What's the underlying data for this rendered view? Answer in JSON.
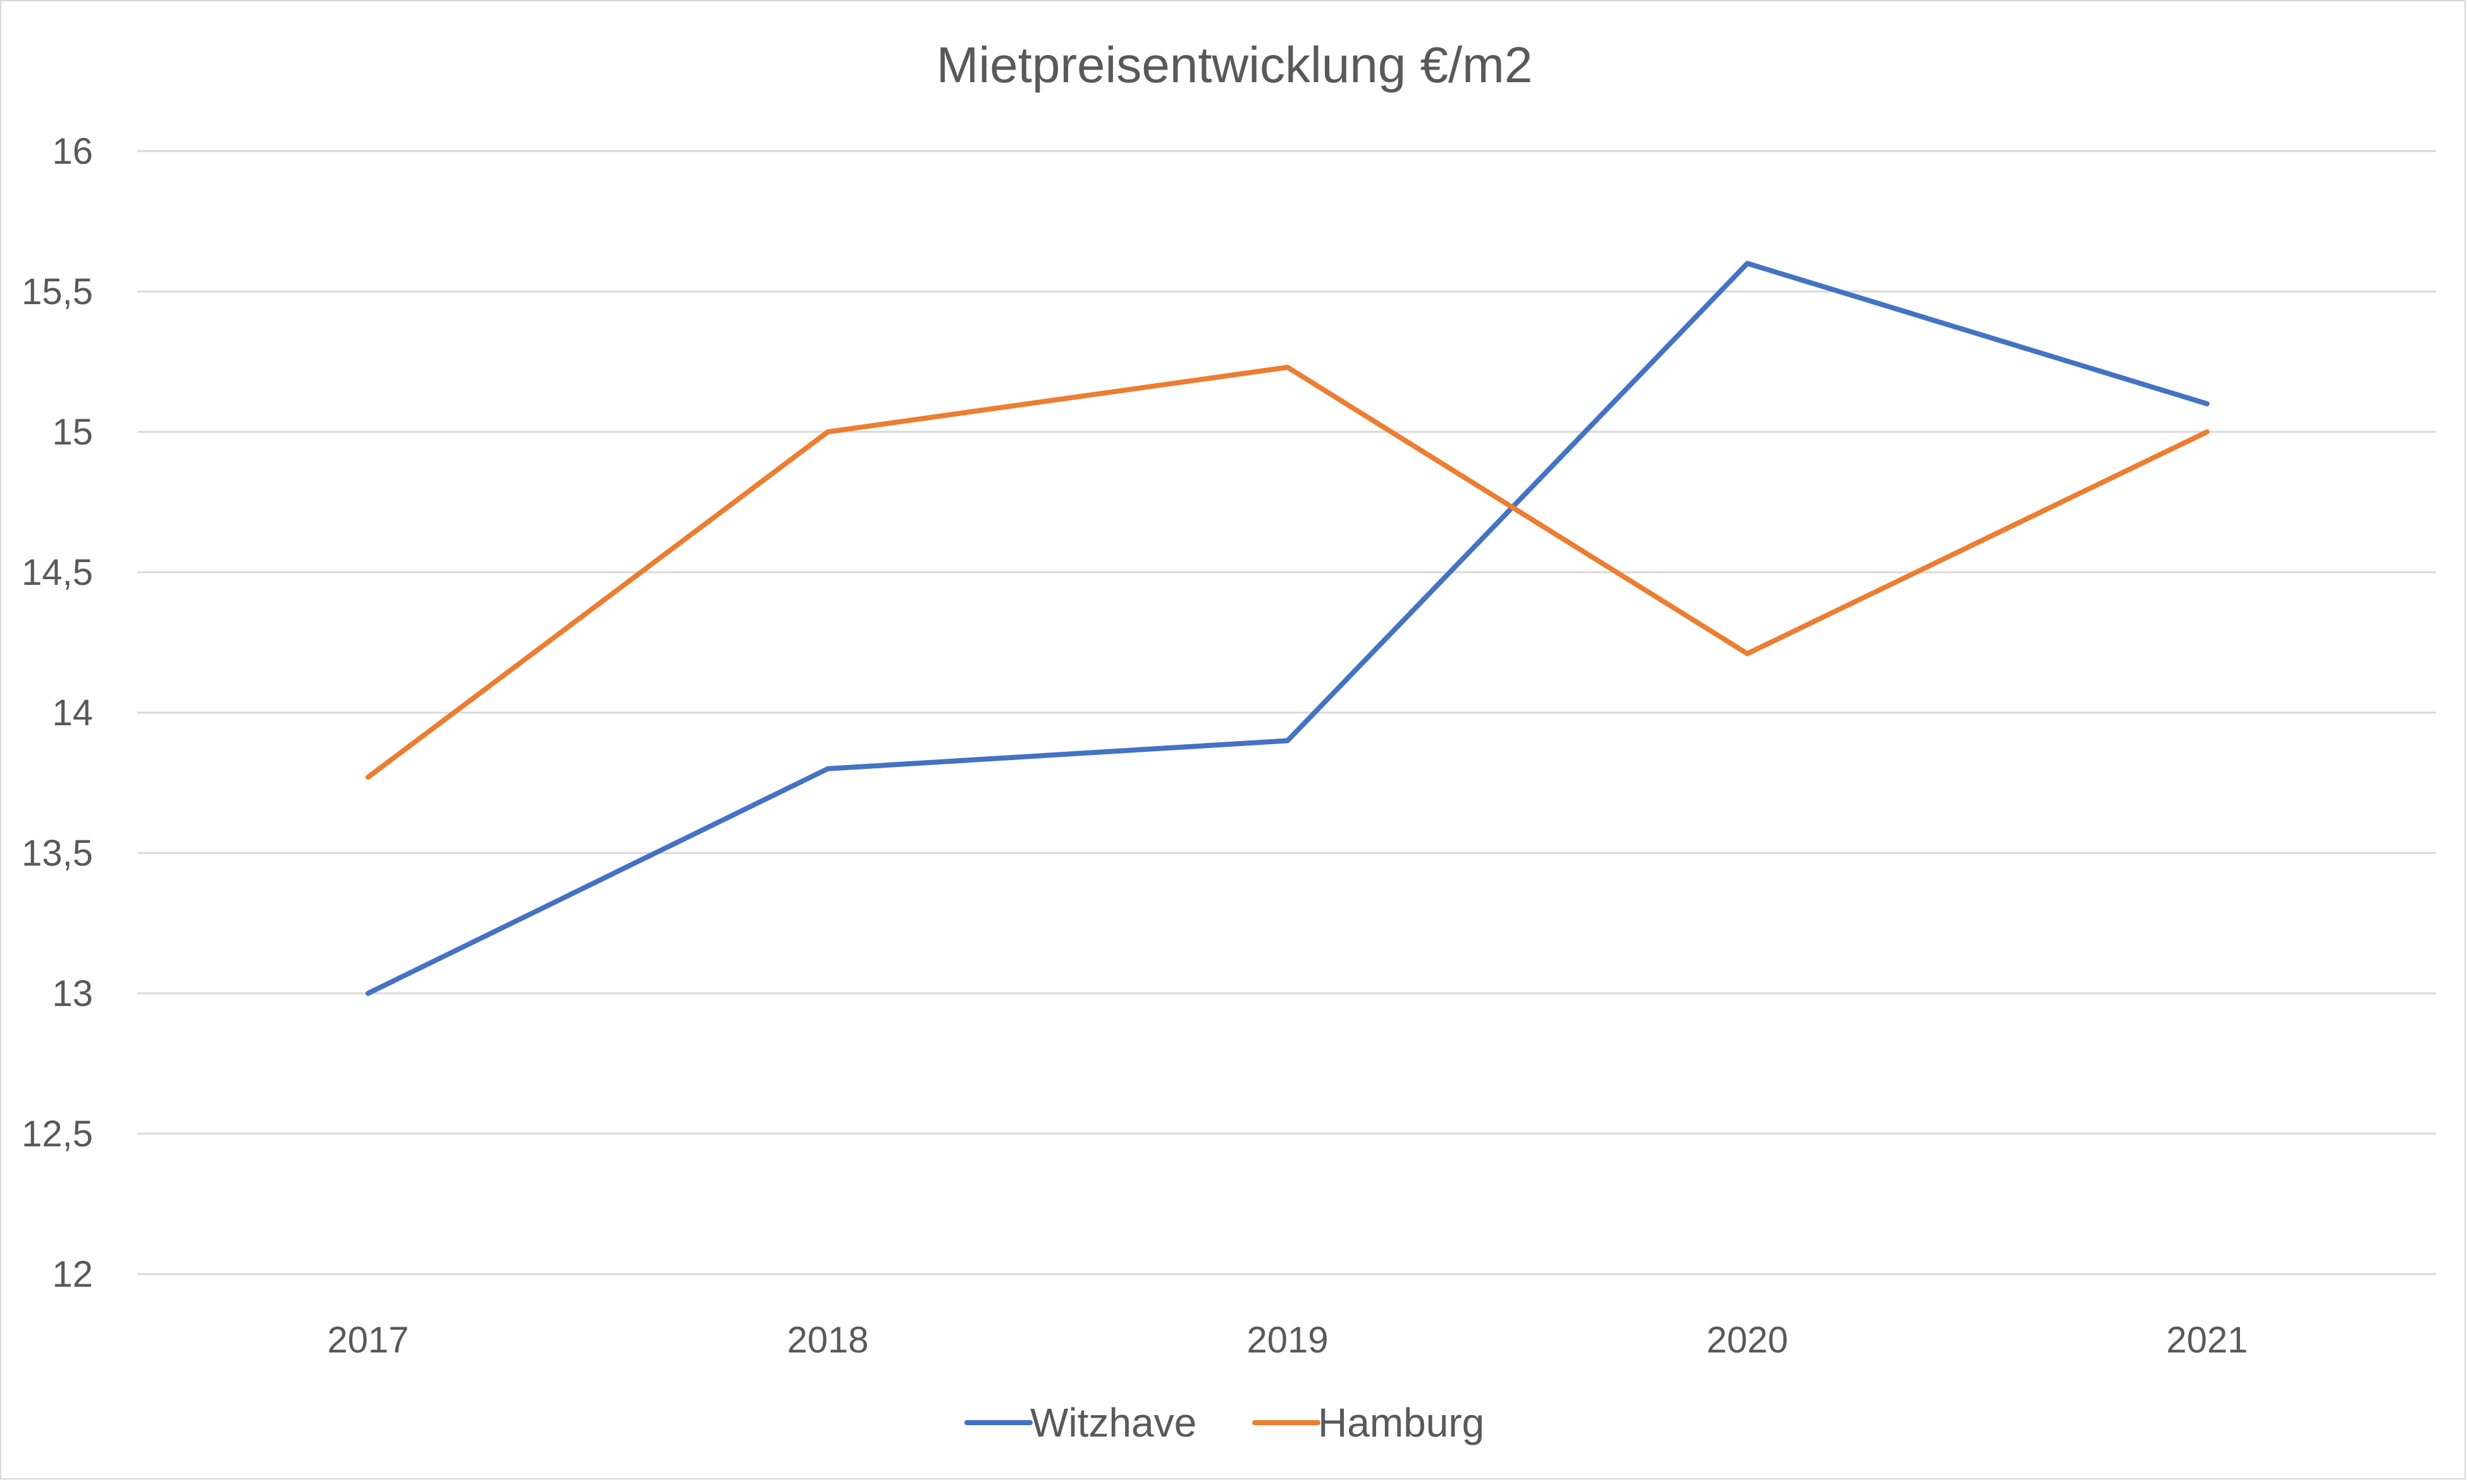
{
  "chart_data": {
    "type": "line",
    "title": "Mietpreisentwicklung  €/m2",
    "xlabel": "",
    "ylabel": "",
    "categories": [
      "2017",
      "2018",
      "2019",
      "2020",
      "2021"
    ],
    "ylim": [
      12,
      16
    ],
    "yticks": [
      12,
      12.5,
      13,
      13.5,
      14,
      14.5,
      15,
      15.5,
      16
    ],
    "ytick_labels": [
      "12",
      "12,5",
      "13",
      "13,5",
      "14",
      "14,5",
      "15",
      "15,5",
      "16"
    ],
    "grid": true,
    "legend_position": "bottom",
    "series": [
      {
        "name": "Witzhave",
        "color": "#4472C4",
        "values": [
          13.0,
          13.8,
          13.9,
          15.6,
          15.1
        ]
      },
      {
        "name": "Hamburg",
        "color": "#ED7D31",
        "values": [
          13.77,
          15.0,
          15.23,
          14.21,
          15.0
        ]
      }
    ]
  }
}
